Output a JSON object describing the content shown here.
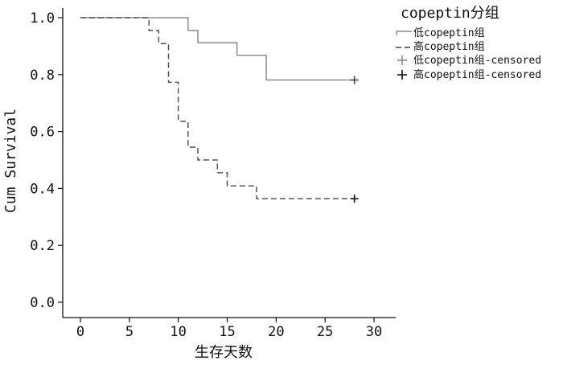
{
  "chart_data": {
    "type": "line",
    "subtype": "kaplan-meier step",
    "xlabel": "生存天数",
    "ylabel": "Cum Survival",
    "xlim": [
      0,
      30
    ],
    "ylim": [
      0,
      1.0
    ],
    "x_ticks": [
      "0",
      "5",
      "10",
      "15",
      "20",
      "25",
      "30"
    ],
    "y_ticks": [
      "0.0",
      "0.2",
      "0.4",
      "0.6",
      "0.8",
      "1.0"
    ],
    "grid": false,
    "legend": {
      "title": "copeptin分组",
      "placement": "top-right",
      "entries": [
        {
          "label": "低copeptin组",
          "style": "solid",
          "kind": "line"
        },
        {
          "label": "高copeptin组",
          "style": "dashed",
          "kind": "line"
        },
        {
          "label": "低copeptin组-censored",
          "style": "solid",
          "kind": "censor"
        },
        {
          "label": "高copeptin组-censored",
          "style": "dashed",
          "kind": "censor"
        }
      ]
    },
    "series": [
      {
        "label": "低copeptin组",
        "color": "#8c8c8c",
        "style": "solid",
        "steps": [
          [
            0,
            1.0
          ],
          [
            11,
            0.955
          ],
          [
            12,
            0.912
          ],
          [
            16,
            0.868
          ],
          [
            19,
            0.781
          ],
          [
            28,
            0.781
          ]
        ],
        "censored": [
          [
            28,
            0.781
          ]
        ]
      },
      {
        "label": "高copeptin组",
        "color": "#555555",
        "style": "dashed",
        "steps": [
          [
            0,
            1.0
          ],
          [
            7,
            0.955
          ],
          [
            8,
            0.909
          ],
          [
            9,
            0.773
          ],
          [
            10,
            0.636
          ],
          [
            11,
            0.545
          ],
          [
            12,
            0.5
          ],
          [
            14,
            0.455
          ],
          [
            15,
            0.409
          ],
          [
            18,
            0.364
          ],
          [
            28,
            0.364
          ]
        ],
        "censored": [
          [
            28,
            0.364
          ]
        ]
      }
    ]
  }
}
